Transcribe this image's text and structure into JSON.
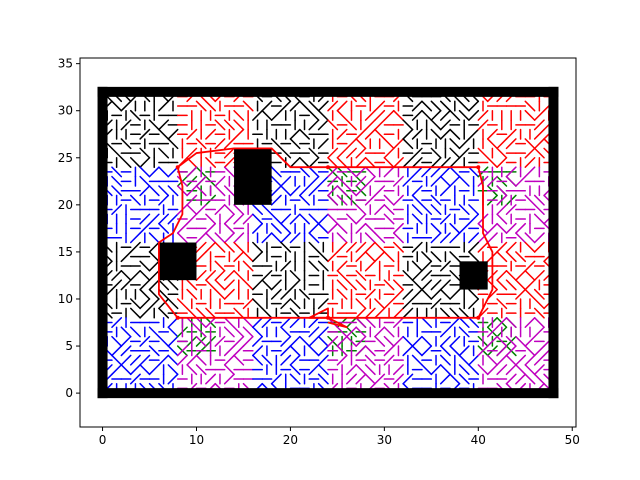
{
  "chart_data": {
    "type": "line",
    "title": "",
    "xlabel": "",
    "ylabel": "",
    "xlim": [
      -2.4,
      50.4
    ],
    "ylim": [
      -3.6,
      35.6
    ],
    "xticks": [
      0,
      10,
      20,
      30,
      40,
      50
    ],
    "yticks": [
      0,
      5,
      10,
      15,
      20,
      25,
      30,
      35
    ],
    "grid": false,
    "legend": "none",
    "colors": {
      "wall": "#000000",
      "path": "#ff0000",
      "tile_top_left": "#000000",
      "tile_top_right": "#ff0000",
      "tile_left": "#0000ff",
      "tile_bottom_left": "#008000",
      "tile_bottom_right": "#bf00bf"
    },
    "border": {
      "x0": 0,
      "y0": 0,
      "x1": 48,
      "y1": 32
    },
    "obstacles": [
      {
        "x0": 14,
        "y0": 20,
        "x1": 18,
        "y1": 26
      },
      {
        "x0": 6,
        "y0": 12,
        "x1": 10,
        "y1": 16
      },
      {
        "x0": 38,
        "y0": 11,
        "x1": 41,
        "y1": 14
      }
    ],
    "tiles": [
      {
        "x0": 0,
        "y0": 16,
        "x1": 16,
        "y1": 32
      },
      {
        "x0": 16,
        "y0": 16,
        "x1": 32,
        "y1": 32
      },
      {
        "x0": 32,
        "y0": 16,
        "x1": 48,
        "y1": 32
      },
      {
        "x0": 0,
        "y0": 0,
        "x1": 16,
        "y1": 16
      },
      {
        "x0": 16,
        "y0": 0,
        "x1": 32,
        "y1": 16
      },
      {
        "x0": 32,
        "y0": 0,
        "x1": 48,
        "y1": 16
      }
    ],
    "nodes": [
      {
        "x": 8,
        "y": 24
      },
      {
        "x": 24,
        "y": 24
      },
      {
        "x": 40,
        "y": 24
      },
      {
        "x": 8,
        "y": 8
      },
      {
        "x": 24,
        "y": 8
      },
      {
        "x": 40,
        "y": 8
      }
    ],
    "path_series": [
      {
        "x": [
          8,
          10,
          14,
          18,
          20,
          24,
          28,
          32,
          36,
          40
        ],
        "y": [
          24,
          25.5,
          26,
          26,
          24,
          24,
          24,
          24,
          24,
          24
        ]
      },
      {
        "x": [
          40,
          40.5,
          40.5,
          41.5,
          41.5,
          40
        ],
        "y": [
          24,
          22,
          17,
          15,
          11,
          8
        ]
      },
      {
        "x": [
          40,
          36,
          32,
          28,
          24,
          20,
          16,
          12,
          8
        ],
        "y": [
          8,
          8,
          8,
          8,
          8,
          8,
          8,
          8,
          8
        ]
      },
      {
        "x": [
          8,
          6,
          6,
          7.5,
          8.5,
          8.5,
          8
        ],
        "y": [
          8,
          10.5,
          16,
          17,
          19,
          22,
          24
        ]
      },
      {
        "x": [
          24,
          24,
          22,
          24,
          26,
          24
        ],
        "y": [
          8,
          9,
          8,
          8,
          7,
          7.5
        ]
      }
    ]
  }
}
